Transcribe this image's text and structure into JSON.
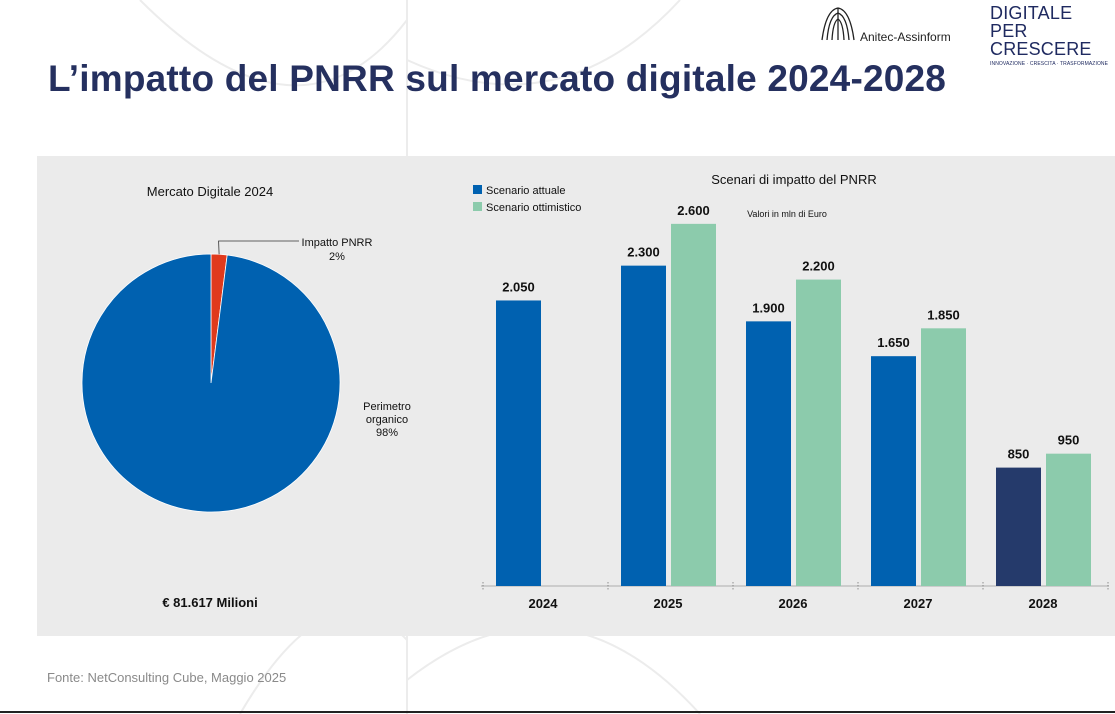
{
  "header": {
    "logo_anitec": "Anitec-Assinform",
    "logo_dpc_line1": "DIGITALE",
    "logo_dpc_line2": "PER CRESCERE",
    "logo_dpc_line3": "INNOVAZIONE · CRESCITA · TRASFORMAZIONE",
    "title": "L’impatto del PNRR sul mercato digitale 2024-2028"
  },
  "footer": {
    "source": "Fonte: NetConsulting Cube, Maggio 2025"
  },
  "chart_data": [
    {
      "type": "pie",
      "title": "Mercato Digitale 2024",
      "slices": [
        {
          "name": "Perimetro organico",
          "value": 98,
          "label_lines": [
            "Perimetro",
            "organico",
            "98%"
          ],
          "color": "#0061b0"
        },
        {
          "name": "Impatto PNRR",
          "value": 2,
          "label_lines": [
            "Impatto PNRR",
            "2%"
          ],
          "color": "#e03a1c"
        }
      ],
      "total_label": "€ 81.617 Milioni"
    },
    {
      "type": "bar",
      "title": "Scenari di impatto del PNRR",
      "subtitle": "Valori in mln di Euro",
      "categories": [
        "2024",
        "2025",
        "2026",
        "2027",
        "2028"
      ],
      "series": [
        {
          "name": "Scenario attuale",
          "color": "#0061b0",
          "values": [
            2050,
            2300,
            1900,
            1650,
            850
          ],
          "labels": [
            "2.050",
            "2.300",
            "1.900",
            "1.650",
            "850"
          ]
        },
        {
          "name": "Scenario ottimistico",
          "color": "#8ccbac",
          "values": [
            null,
            2600,
            2200,
            1850,
            950
          ],
          "labels": [
            "",
            "2.600",
            "2.200",
            "1.850",
            "950"
          ]
        }
      ],
      "highlight_color": "#253a6b",
      "legend_position": "top-left",
      "ylim": [
        0,
        2800
      ],
      "grid": false
    }
  ]
}
